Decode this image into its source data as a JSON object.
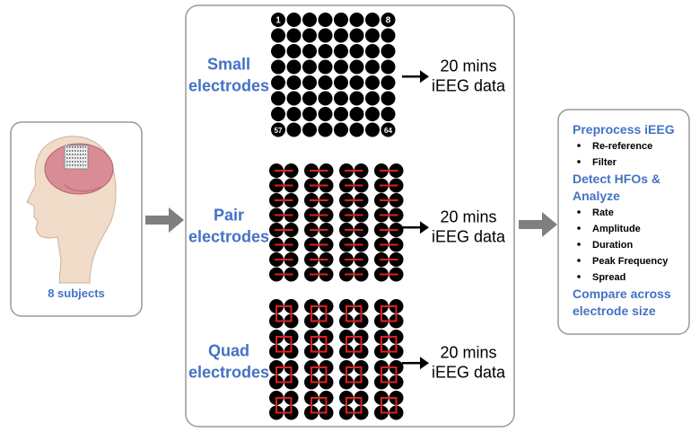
{
  "subject_panel": {
    "label": "8 subjects"
  },
  "electrode_configs": [
    {
      "label_lines": [
        "Small",
        "electrodes"
      ],
      "output_lines": [
        "20 mins",
        "iEEG data"
      ],
      "corner_labels": [
        "1",
        "8",
        "57",
        "64"
      ]
    },
    {
      "label_lines": [
        "Pair",
        "electrodes"
      ],
      "output_lines": [
        "20 mins",
        "iEEG data"
      ]
    },
    {
      "label_lines": [
        "Quad",
        "electrodes"
      ],
      "output_lines": [
        "20 mins",
        "iEEG data"
      ]
    }
  ],
  "analysis_panel": {
    "steps": [
      {
        "title_lines": [
          "Preprocess iEEG"
        ],
        "items": [
          "Re-reference",
          "Filter"
        ]
      },
      {
        "title_lines": [
          "Detect HFOs &",
          "Analyze"
        ],
        "items": [
          "Rate",
          "Amplitude",
          "Duration",
          "Peak Frequency",
          "Spread"
        ]
      },
      {
        "title_lines": [
          "Compare across",
          "electrode size"
        ]
      }
    ]
  }
}
